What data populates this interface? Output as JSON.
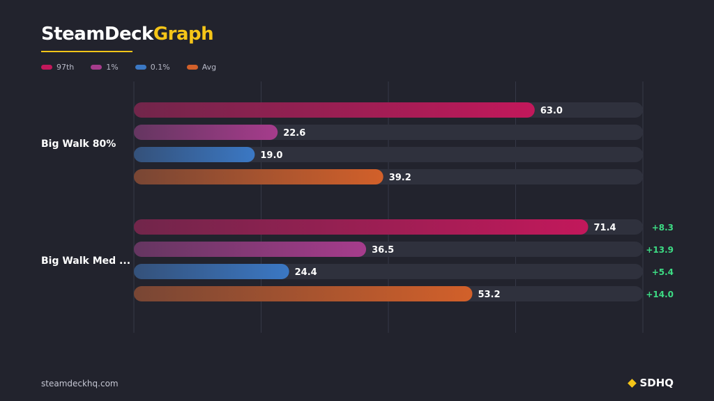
{
  "brand": {
    "title_part1": "SteamDeck",
    "title_part2": "Graph",
    "site": "steamdeckhq.com",
    "logo_text": "SDHQ",
    "accent_color": "#f5c518"
  },
  "chart_data": {
    "type": "bar",
    "orientation": "horizontal",
    "title": "",
    "xlabel": "",
    "ylabel": "",
    "xlim": [
      0,
      80
    ],
    "grid": true,
    "legend_position": "top-left",
    "categories": [
      "Big Walk 80%",
      "Big Walk Med ..."
    ],
    "series": [
      {
        "name": "97th",
        "color": "#c2185b",
        "values": [
          63.0,
          71.4
        ]
      },
      {
        "name": "1%",
        "color": "#a63c8c",
        "values": [
          22.6,
          36.5
        ]
      },
      {
        "name": "0.1%",
        "color": "#3b78c4",
        "values": [
          19.0,
          24.4
        ]
      },
      {
        "name": "Avg",
        "color": "#d2602a",
        "values": [
          39.2,
          53.2
        ]
      }
    ],
    "value_labels": [
      [
        "63.0",
        "22.6",
        "19.0",
        "39.2"
      ],
      [
        "71.4",
        "36.5",
        "24.4",
        "53.2"
      ]
    ],
    "deltas": [
      [],
      [
        "+8.3",
        "+13.9",
        "+5.4",
        "+14.0"
      ]
    ],
    "delta_color": "#3ddc84"
  }
}
